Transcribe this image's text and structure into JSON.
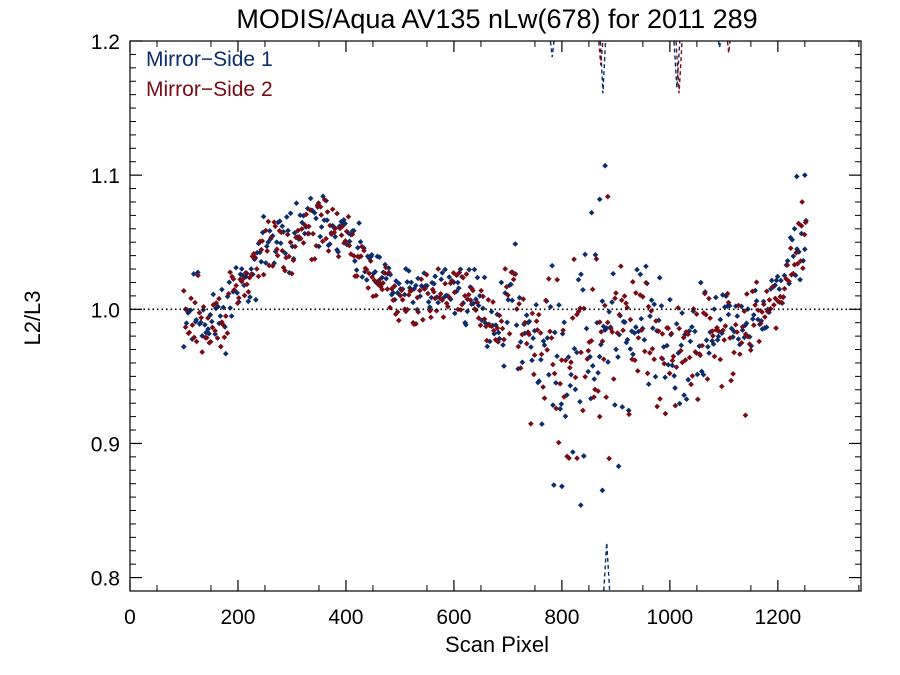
{
  "chart_data": {
    "type": "scatter",
    "title": "MODIS/Aqua AV135 nLw(678) for 2011 289",
    "xlabel": "Scan Pixel",
    "ylabel": "L2/L3",
    "xlim": [
      0,
      1354
    ],
    "ylim": [
      0.79,
      1.2
    ],
    "xticks": [
      0,
      200,
      400,
      600,
      800,
      1000,
      1200
    ],
    "xtick_labels": [
      "0",
      "200",
      "400",
      "600",
      "800",
      "1000",
      "1200"
    ],
    "yticks": [
      0.8,
      0.9,
      1.0,
      1.1,
      1.2
    ],
    "ytick_labels": [
      "0.8",
      "0.9",
      "1.0",
      "1.1",
      "1.2"
    ],
    "reference_line": {
      "y": 1.0,
      "style": "dotted",
      "color": "#000000"
    },
    "grid": false,
    "legend": {
      "placement": "top-left"
    },
    "series": [
      {
        "name": "Mirror−Side 1",
        "color": "#0a2d6e",
        "trend": [
          [
            100,
            0.995
          ],
          [
            120,
            1.0
          ],
          [
            150,
            0.99
          ],
          [
            175,
            1.0
          ],
          [
            200,
            1.015
          ],
          [
            230,
            1.035
          ],
          [
            260,
            1.05
          ],
          [
            290,
            1.05
          ],
          [
            320,
            1.065
          ],
          [
            360,
            1.065
          ],
          [
            400,
            1.055
          ],
          [
            430,
            1.035
          ],
          [
            460,
            1.025
          ],
          [
            500,
            1.015
          ],
          [
            550,
            1.015
          ],
          [
            600,
            1.015
          ],
          [
            640,
            1.01
          ],
          [
            680,
            0.99
          ],
          [
            710,
            1.0
          ],
          [
            750,
            0.985
          ],
          [
            800,
            0.96
          ],
          [
            850,
            0.97
          ],
          [
            880,
            0.985
          ],
          [
            920,
            0.975
          ],
          [
            960,
            0.985
          ],
          [
            1000,
            0.975
          ],
          [
            1040,
            0.97
          ],
          [
            1080,
            0.985
          ],
          [
            1120,
            0.99
          ],
          [
            1160,
            0.99
          ],
          [
            1200,
            1.01
          ],
          [
            1230,
            1.045
          ],
          [
            1250,
            1.06
          ]
        ],
        "spread": [
          [
            100,
            0.025
          ],
          [
            300,
            0.018
          ],
          [
            500,
            0.014
          ],
          [
            650,
            0.02
          ],
          [
            700,
            0.03
          ],
          [
            760,
            0.05
          ],
          [
            880,
            0.065
          ],
          [
            1000,
            0.04
          ],
          [
            1100,
            0.03
          ],
          [
            1200,
            0.02
          ],
          [
            1250,
            0.025
          ]
        ],
        "outliers": [
          [
            880,
            1.107
          ],
          [
            870,
            1.082
          ],
          [
            855,
            1.072
          ],
          [
            785,
            0.869
          ],
          [
            800,
            0.868
          ],
          [
            835,
            0.854
          ],
          [
            875,
            0.865
          ],
          [
            905,
            0.883
          ],
          [
            1235,
            1.099
          ],
          [
            1250,
            1.1
          ]
        ],
        "dashed_excursions": [
          {
            "x": [
              776,
              782,
              788
            ],
            "y": [
              1.21,
              1.188,
              1.21
            ]
          },
          {
            "x": [
              870,
              876,
              882
            ],
            "y": [
              1.21,
              1.161,
              1.21
            ]
          },
          {
            "x": [
              1006,
              1013,
              1020
            ],
            "y": [
              1.21,
              1.165,
              1.21
            ]
          },
          {
            "x": [
              1086,
              1092,
              1098
            ],
            "y": [
              1.21,
              1.195,
              1.21
            ]
          },
          {
            "x": [
              876,
              883,
              890
            ],
            "y": [
              0.78,
              0.826,
              0.78
            ]
          }
        ],
        "seed": 11
      },
      {
        "name": "Mirror−Side 2",
        "color": "#7a0a14",
        "trend": [
          [
            100,
            0.99
          ],
          [
            120,
            0.995
          ],
          [
            150,
            0.985
          ],
          [
            175,
            0.995
          ],
          [
            200,
            1.01
          ],
          [
            230,
            1.03
          ],
          [
            260,
            1.05
          ],
          [
            290,
            1.045
          ],
          [
            320,
            1.06
          ],
          [
            360,
            1.065
          ],
          [
            400,
            1.055
          ],
          [
            430,
            1.03
          ],
          [
            460,
            1.02
          ],
          [
            500,
            1.01
          ],
          [
            550,
            1.01
          ],
          [
            600,
            1.015
          ],
          [
            640,
            1.005
          ],
          [
            680,
            0.985
          ],
          [
            710,
            1.005
          ],
          [
            750,
            0.985
          ],
          [
            800,
            0.955
          ],
          [
            850,
            0.965
          ],
          [
            880,
            0.98
          ],
          [
            920,
            0.97
          ],
          [
            960,
            0.98
          ],
          [
            1000,
            0.97
          ],
          [
            1040,
            0.97
          ],
          [
            1080,
            0.98
          ],
          [
            1120,
            0.985
          ],
          [
            1160,
            0.99
          ],
          [
            1200,
            1.005
          ],
          [
            1230,
            1.04
          ],
          [
            1250,
            1.055
          ]
        ],
        "spread": [
          [
            100,
            0.025
          ],
          [
            300,
            0.018
          ],
          [
            500,
            0.014
          ],
          [
            650,
            0.02
          ],
          [
            700,
            0.03
          ],
          [
            760,
            0.05
          ],
          [
            880,
            0.065
          ],
          [
            1000,
            0.04
          ],
          [
            1100,
            0.03
          ],
          [
            1200,
            0.02
          ],
          [
            1250,
            0.025
          ]
        ],
        "outliers": [
          [
            885,
            1.084
          ],
          [
            828,
            0.889
          ],
          [
            870,
            0.92
          ],
          [
            1140,
            0.921
          ],
          [
            1245,
            1.08
          ]
        ],
        "dashed_excursions": [
          {
            "x": [
              866,
              872,
              878
            ],
            "y": [
              1.21,
              1.182,
              1.21
            ]
          },
          {
            "x": [
              1010,
              1017,
              1024
            ],
            "y": [
              1.21,
              1.161,
              1.21
            ]
          },
          {
            "x": [
              1104,
              1109,
              1114
            ],
            "y": [
              1.21,
              1.191,
              1.21
            ]
          }
        ],
        "seed": 29
      }
    ]
  }
}
